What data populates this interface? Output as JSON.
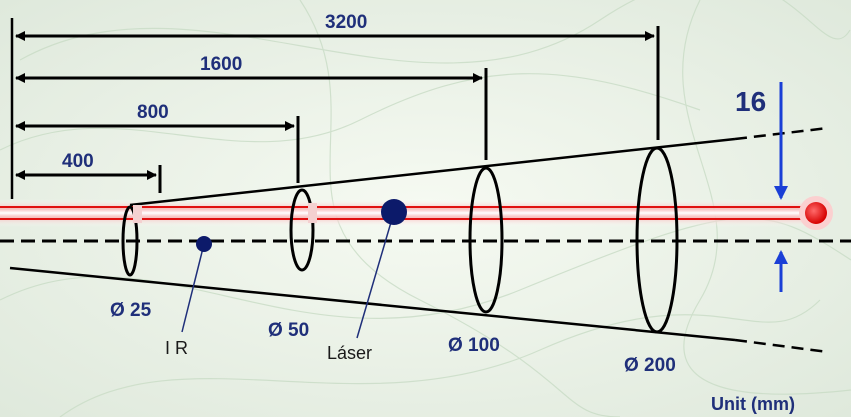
{
  "distances": {
    "d400": "400",
    "d800": "800",
    "d1600": "1600",
    "d3200": "3200"
  },
  "spot_diameters": {
    "s25": "Ø 25",
    "s50": "Ø 50",
    "s100": "Ø 100",
    "s200": "Ø 200"
  },
  "offset": "16",
  "labels": {
    "ir": "I R",
    "laser": "Láser",
    "unit": "Unit (mm)"
  },
  "colors": {
    "label_blue": "#1f2f7a",
    "arrow_blue": "#1a3fd6",
    "laser_red": "#e01010",
    "dot_blue": "#0c1a6a"
  }
}
